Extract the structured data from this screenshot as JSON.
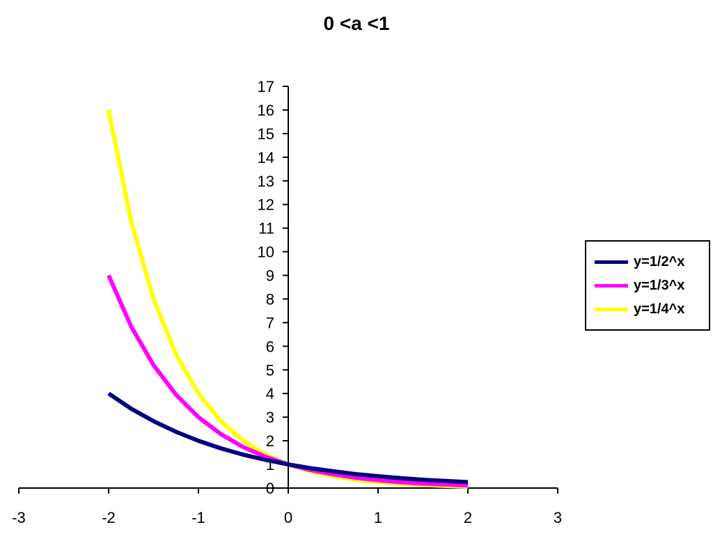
{
  "chart_data": {
    "type": "line",
    "title": "0 <a <1",
    "xlabel": "",
    "ylabel": "",
    "xlim": [
      -3,
      3
    ],
    "ylim": [
      0,
      17
    ],
    "x_ticks": [
      -3,
      -2,
      -1,
      0,
      1,
      2,
      3
    ],
    "y_ticks": [
      0,
      1,
      2,
      3,
      4,
      5,
      6,
      7,
      8,
      9,
      10,
      11,
      12,
      13,
      14,
      15,
      16,
      17
    ],
    "grid": false,
    "legend_position": "right",
    "x": [
      -2,
      -1.75,
      -1.5,
      -1.25,
      -1,
      -0.75,
      -0.5,
      -0.25,
      0,
      0.25,
      0.5,
      0.75,
      1,
      1.25,
      1.5,
      1.75,
      2
    ],
    "series": [
      {
        "name": "y=1/2^x",
        "color": "#000080",
        "values": [
          4,
          3.36,
          2.83,
          2.38,
          2,
          1.68,
          1.41,
          1.19,
          1,
          0.84,
          0.71,
          0.59,
          0.5,
          0.42,
          0.35,
          0.3,
          0.25
        ]
      },
      {
        "name": "y=1/3^x",
        "color": "#ff00ff",
        "values": [
          9,
          6.84,
          5.2,
          3.95,
          3,
          2.28,
          1.73,
          1.32,
          1,
          0.76,
          0.58,
          0.44,
          0.33,
          0.25,
          0.19,
          0.15,
          0.11
        ]
      },
      {
        "name": "y=1/4^x",
        "color": "#ffff00",
        "values": [
          16,
          11.31,
          8,
          5.66,
          4,
          2.83,
          2,
          1.41,
          1,
          0.71,
          0.5,
          0.35,
          0.25,
          0.18,
          0.13,
          0.09,
          0.06
        ]
      }
    ]
  }
}
